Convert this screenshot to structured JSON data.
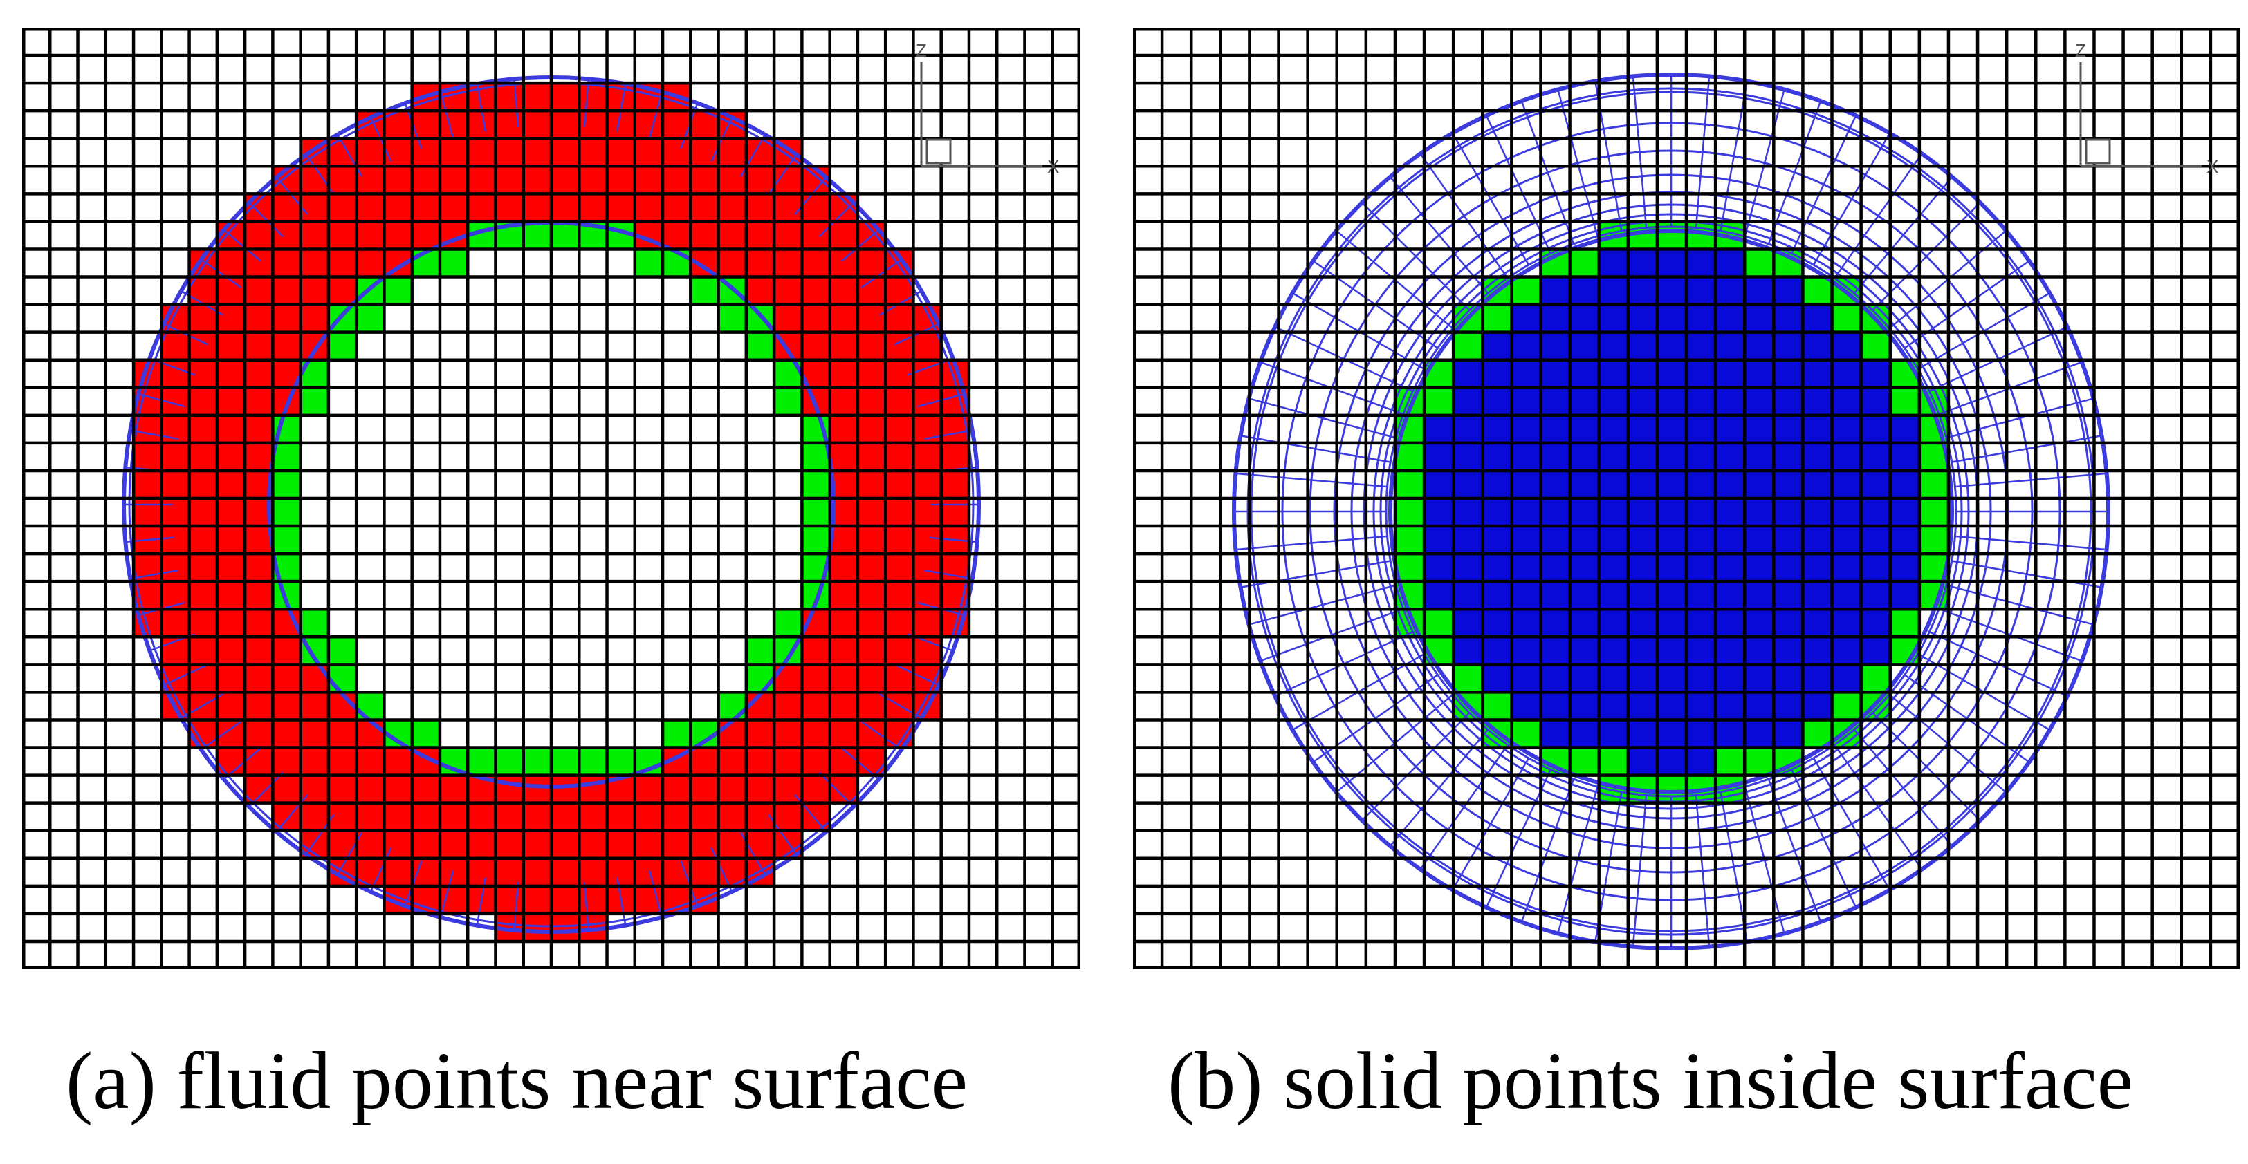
{
  "colors": {
    "grid": "#000000",
    "body_mesh": "#3b3bdf",
    "fluid_points": "#ff0000",
    "boundary_points": "#00ee00",
    "solid_points": "#0a0ad8",
    "background": "#ffffff"
  },
  "panels": [
    {
      "id": "a",
      "caption": "(a) fluid points near surface",
      "highlight": "fluid",
      "axis_label": "Z",
      "x_axis_label": "X"
    },
    {
      "id": "b",
      "caption": "(b) solid points inside surface",
      "highlight": "solid",
      "axis_label": "Z",
      "x_axis_label": "X"
    }
  ]
}
